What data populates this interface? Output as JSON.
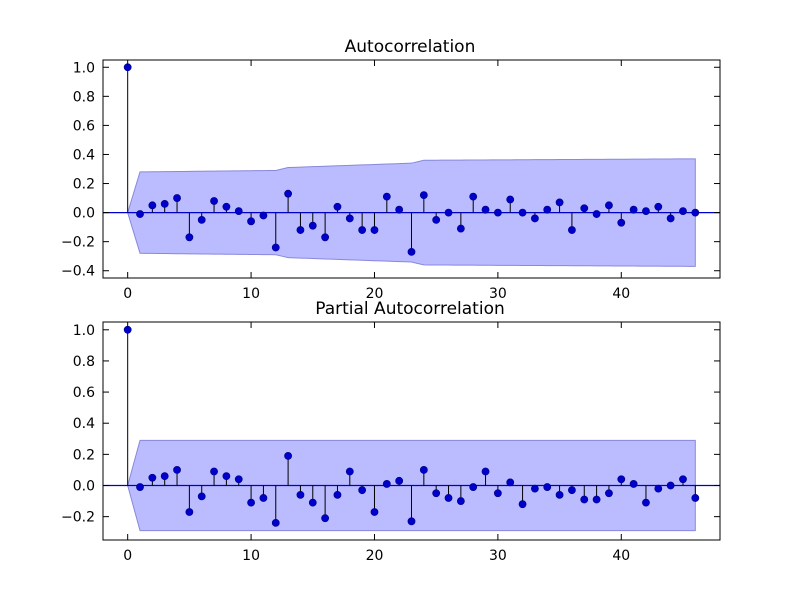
{
  "chart_data": [
    {
      "type": "stem",
      "title": "Autocorrelation",
      "xlim": [
        -2,
        48
      ],
      "ylim": [
        -0.45,
        1.05
      ],
      "xticks": [
        0,
        10,
        20,
        30,
        40
      ],
      "yticks": [
        1.0,
        0.8,
        0.6,
        0.4,
        0.2,
        0.0,
        -0.2,
        -0.4
      ],
      "ytick_labels": [
        "1.0",
        "0.8",
        "0.6",
        "0.4",
        "0.2",
        "0.0",
        "−0.2",
        "−0.4"
      ],
      "lags": [
        0,
        1,
        2,
        3,
        4,
        5,
        6,
        7,
        8,
        9,
        10,
        11,
        12,
        13,
        14,
        15,
        16,
        17,
        18,
        19,
        20,
        21,
        22,
        23,
        24,
        25,
        26,
        27,
        28,
        29,
        30,
        31,
        32,
        33,
        34,
        35,
        36,
        37,
        38,
        39,
        40,
        41,
        42,
        43,
        44,
        45,
        46
      ],
      "values": [
        1.0,
        -0.01,
        0.05,
        0.06,
        0.1,
        -0.17,
        -0.05,
        0.08,
        0.04,
        0.01,
        -0.06,
        -0.02,
        -0.24,
        0.13,
        -0.12,
        -0.09,
        -0.17,
        0.04,
        -0.04,
        -0.12,
        -0.12,
        0.11,
        0.02,
        -0.27,
        0.12,
        -0.05,
        0.0,
        -0.11,
        0.11,
        0.02,
        0.0,
        0.09,
        0.0,
        -0.04,
        0.02,
        0.07,
        -0.12,
        0.03,
        -0.01,
        0.05,
        -0.07,
        0.02,
        0.01,
        0.04,
        -0.04,
        0.01,
        0.0
      ],
      "confint": {
        "lags": [
          0,
          1,
          12,
          13,
          23,
          24,
          46
        ],
        "upper": [
          0.0,
          0.28,
          0.29,
          0.31,
          0.34,
          0.36,
          0.37
        ]
      },
      "colors": {
        "marker": "#0000cc",
        "stem": "#000000",
        "band": "#bbbbff",
        "band_edge": "#8888dd",
        "zero_line": "#0000cc"
      }
    },
    {
      "type": "stem",
      "title": "Partial Autocorrelation",
      "xlim": [
        -2,
        48
      ],
      "ylim": [
        -0.35,
        1.05
      ],
      "xticks": [
        0,
        10,
        20,
        30,
        40
      ],
      "yticks": [
        1.0,
        0.8,
        0.6,
        0.4,
        0.2,
        0.0,
        -0.2
      ],
      "ytick_labels": [
        "1.0",
        "0.8",
        "0.6",
        "0.4",
        "0.2",
        "0.0",
        "−0.2"
      ],
      "lags": [
        0,
        1,
        2,
        3,
        4,
        5,
        6,
        7,
        8,
        9,
        10,
        11,
        12,
        13,
        14,
        15,
        16,
        17,
        18,
        19,
        20,
        21,
        22,
        23,
        24,
        25,
        26,
        27,
        28,
        29,
        30,
        31,
        32,
        33,
        34,
        35,
        36,
        37,
        38,
        39,
        40,
        41,
        42,
        43,
        44,
        45,
        46
      ],
      "values": [
        1.0,
        -0.01,
        0.05,
        0.06,
        0.1,
        -0.17,
        -0.07,
        0.09,
        0.06,
        0.04,
        -0.11,
        -0.08,
        -0.24,
        0.19,
        -0.06,
        -0.11,
        -0.21,
        -0.06,
        0.09,
        -0.03,
        -0.17,
        0.01,
        0.03,
        -0.23,
        0.1,
        -0.05,
        -0.08,
        -0.1,
        -0.01,
        0.09,
        -0.05,
        0.02,
        -0.12,
        -0.02,
        -0.01,
        -0.06,
        -0.03,
        -0.09,
        -0.09,
        -0.05,
        0.04,
        0.01,
        -0.11,
        -0.02,
        0.0,
        0.04,
        -0.08
      ],
      "confint": {
        "lags": [
          0,
          1,
          46
        ],
        "upper": [
          0.0,
          0.29,
          0.29
        ]
      },
      "colors": {
        "marker": "#0000cc",
        "stem": "#000000",
        "band": "#bbbbff",
        "band_edge": "#8888dd",
        "zero_line": "#0000cc"
      }
    }
  ]
}
